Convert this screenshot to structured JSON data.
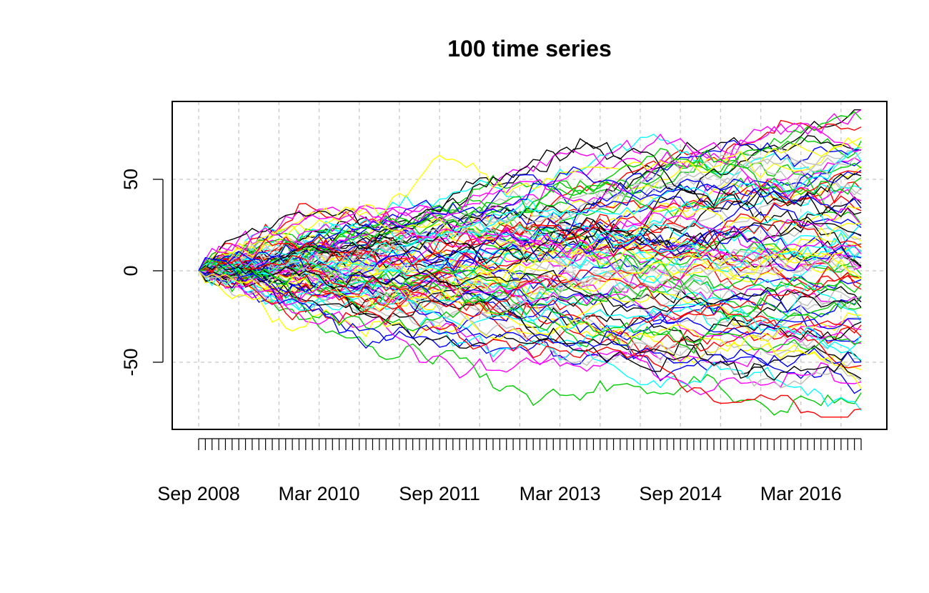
{
  "chart_data": {
    "type": "line",
    "title": "100 time series",
    "xlabel": "",
    "ylabel": "",
    "x_start": "2008-09",
    "x_end": "2016-12",
    "x_step_months": 1,
    "x_ticks": [
      "Sep 2008",
      "Mar 2010",
      "Sep 2011",
      "Mar 2013",
      "Sep 2014",
      "Mar 2016"
    ],
    "y_ticks": [
      -50,
      0,
      50
    ],
    "ylim": [
      -85,
      92
    ],
    "grid": true,
    "legend": "none",
    "series_count": 100,
    "palette": [
      "#000000",
      "#ff0000",
      "#00cd00",
      "#0000ff",
      "#00ffff",
      "#ff00ff",
      "#ffff00",
      "#bebebe"
    ],
    "series_end_values": [
      83,
      72,
      69,
      62,
      58,
      55,
      50,
      44,
      38,
      33,
      30,
      27,
      22,
      18,
      15,
      12,
      8,
      5,
      2,
      -2,
      -6,
      -10,
      -13,
      -17,
      -20,
      -24,
      -28,
      -31,
      -36,
      -40,
      -45,
      -50,
      -55,
      -58,
      -63,
      -66,
      -72
    ]
  }
}
